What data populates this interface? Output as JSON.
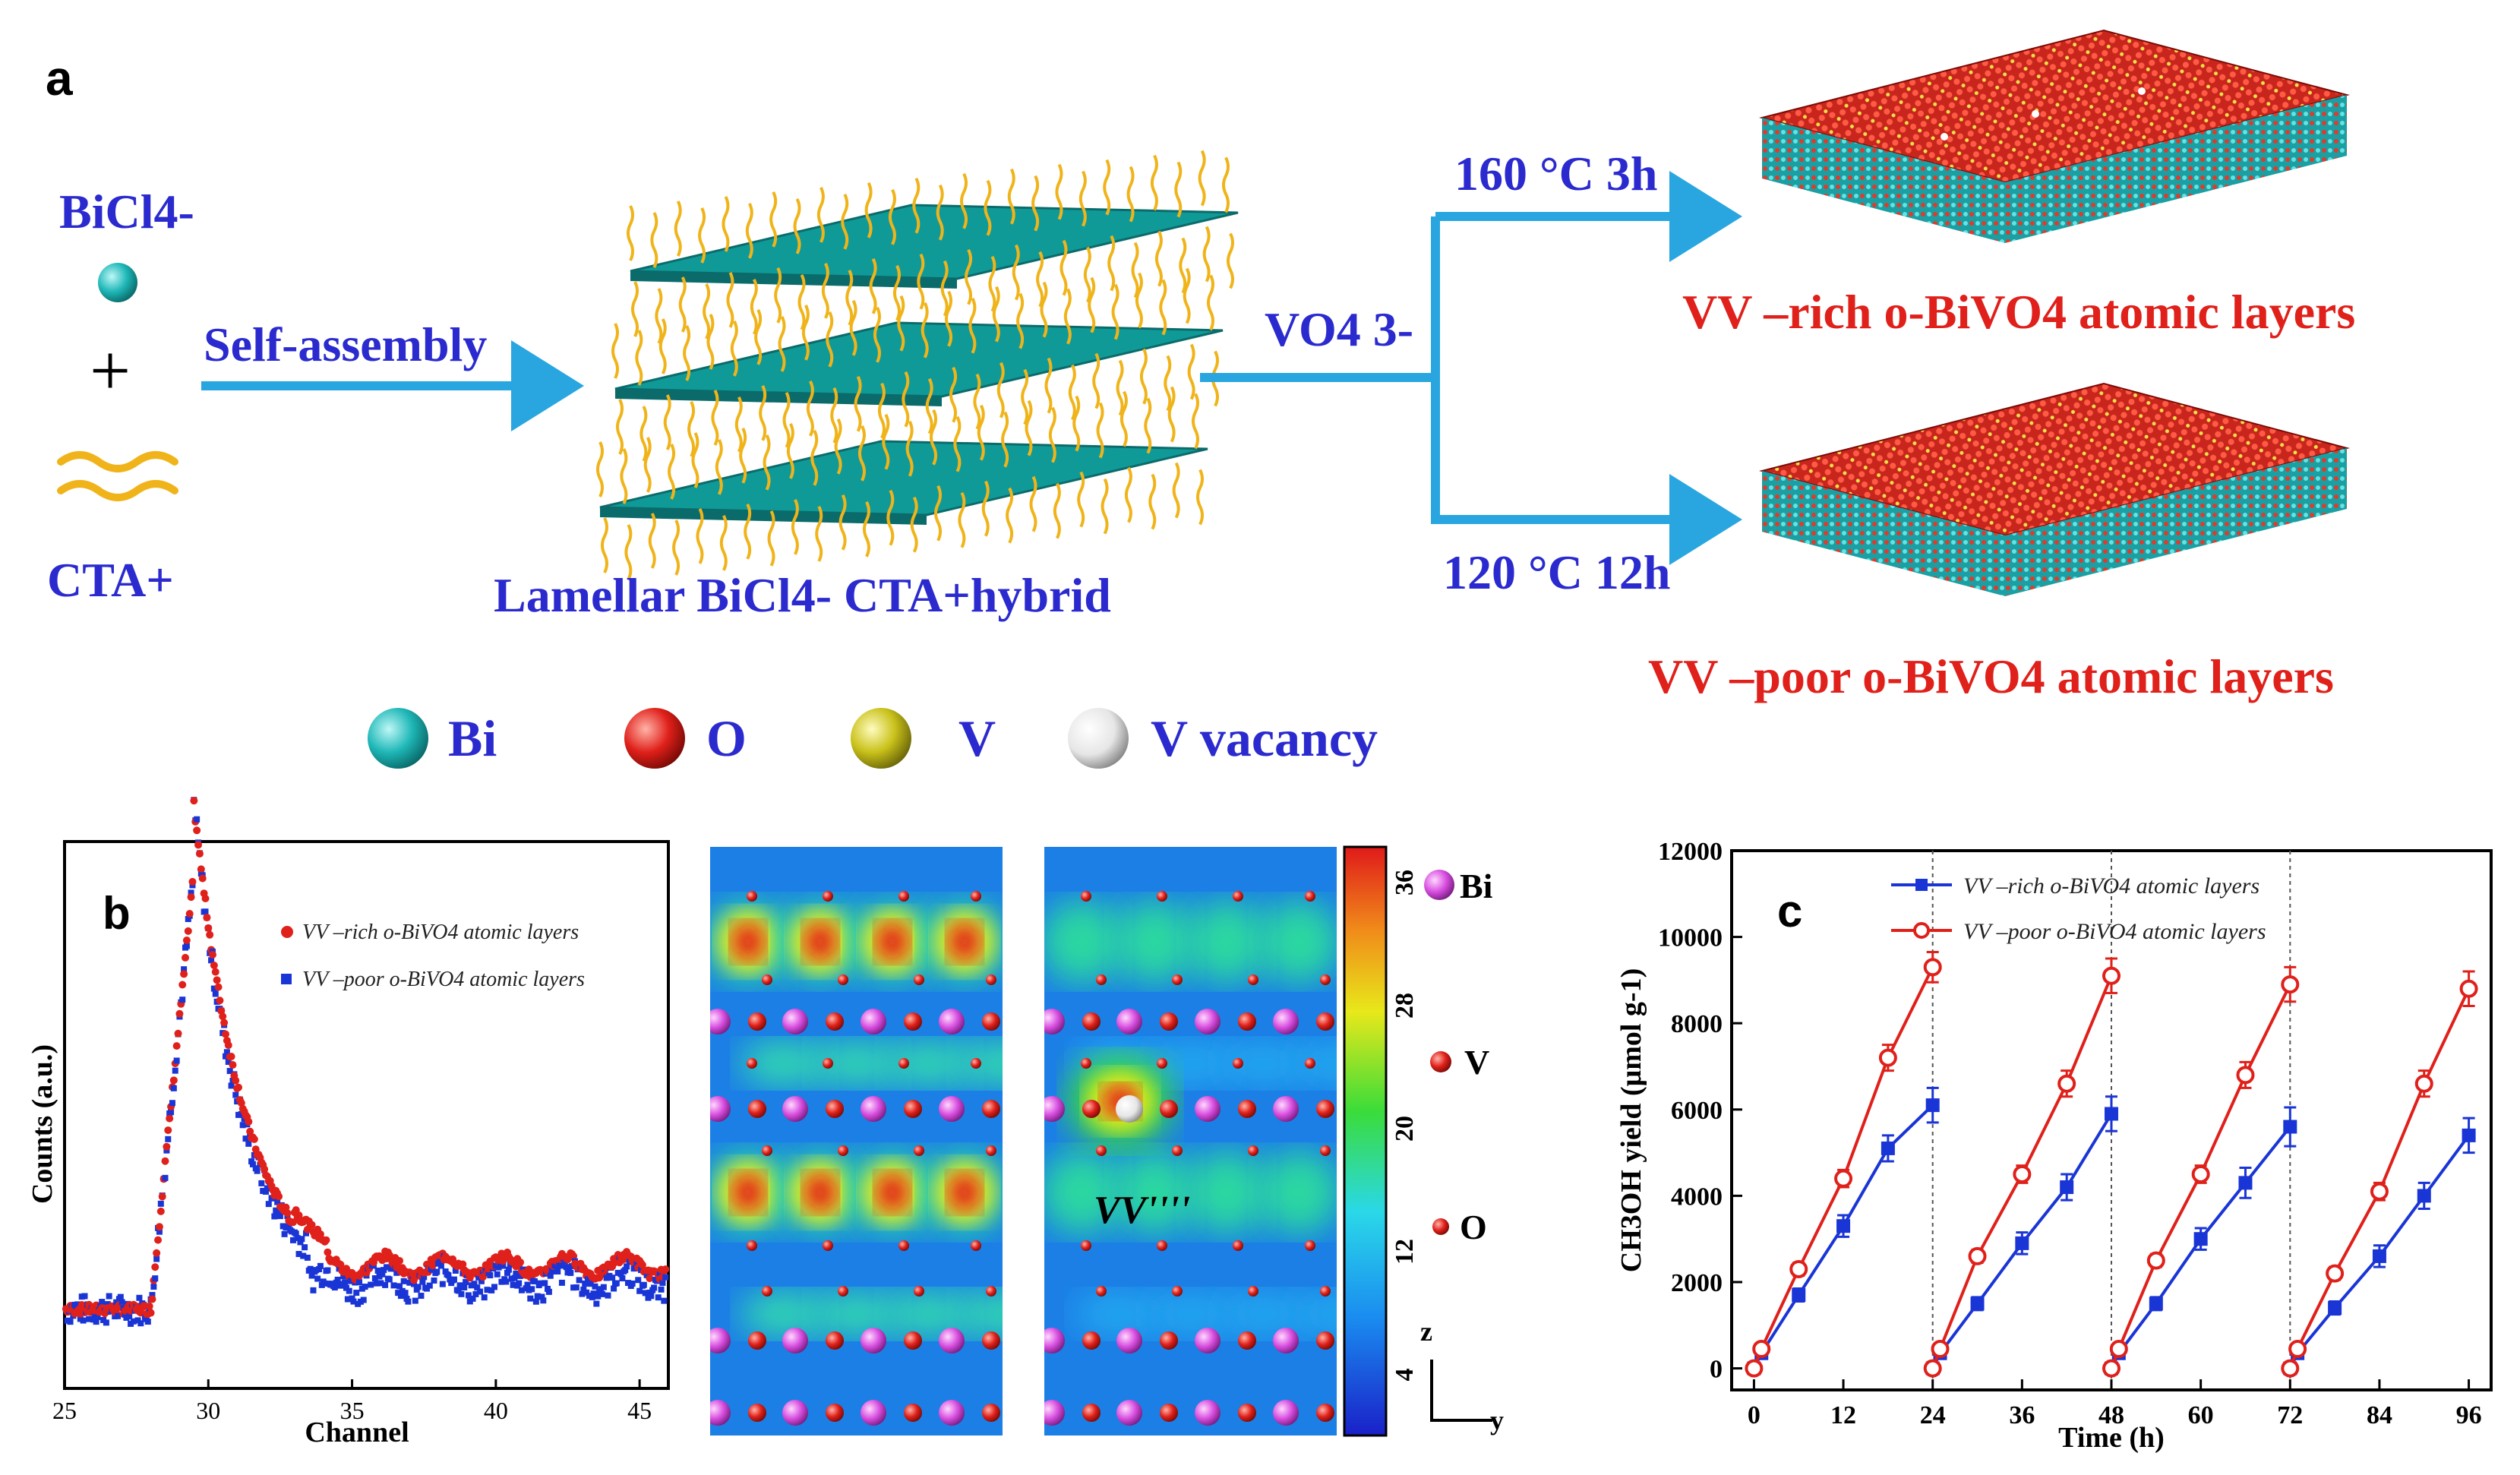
{
  "panel_a": {
    "letter": "a",
    "bicl4_label": "BiCl4-",
    "plus": "+",
    "cta_label": "CTA+",
    "arrow1_label": "Self-assembly",
    "lamellar_label": "Lamellar BiCl4- CTA+hybrid",
    "vo4_label": "VO4 3-",
    "upper_condition": "160 °C 3h",
    "lower_condition": "120 °C 12h",
    "rich_label": "VV –rich o-BiVO4 atomic layers",
    "poor_label": "VV –poor o-BiVO4 atomic layers",
    "legend": [
      {
        "name": "Bi",
        "color": "#1fb7b7"
      },
      {
        "name": "O",
        "color": "#e0201a"
      },
      {
        "name": "V",
        "color": "#c9c11a"
      },
      {
        "name": "V vacancy",
        "color": "#f2f2f2"
      }
    ]
  },
  "panel_b": {
    "letter": "b",
    "legend_rich": "VV –rich o-BiVO4 atomic layers",
    "legend_poor": "VV –poor o-BiVO4 atomic layers",
    "xlabel": "Channel",
    "ylabel": "Counts (a.u.)",
    "xticks": [
      "25",
      "30",
      "35",
      "40",
      "45"
    ],
    "colorbar_ticks": [
      "4",
      "12",
      "20",
      "28",
      "36"
    ],
    "atom_legend": [
      "Bi",
      "V",
      "O"
    ],
    "vacancy_label": "VV''''",
    "axis_z": "z",
    "axis_y": "y"
  },
  "chart_data": {
    "type": "line",
    "title": "c",
    "xlabel": "Time (h)",
    "ylabel": "CH3OH yield (μmol g-1)",
    "xlim": [
      -3,
      99
    ],
    "ylim": [
      -500,
      12000
    ],
    "xticks": [
      0,
      12,
      24,
      36,
      48,
      60,
      72,
      84,
      96
    ],
    "yticks": [
      0,
      2000,
      4000,
      6000,
      8000,
      10000,
      12000
    ],
    "cycle_dividers": [
      24,
      48,
      72
    ],
    "series": [
      {
        "name": "VV –rich o-BiVO4 atomic layers",
        "color": "#1a35d6",
        "marker": "square",
        "cycles": [
          {
            "x": [
              0,
              1,
              6,
              12,
              18,
              24
            ],
            "y": [
              0,
              350,
              1700,
              3300,
              5100,
              6100
            ],
            "err": [
              0,
              80,
              150,
              250,
              300,
              400
            ]
          },
          {
            "x": [
              24,
              25,
              30,
              36,
              42,
              48
            ],
            "y": [
              0,
              350,
              1500,
              2900,
              4200,
              5900
            ],
            "err": [
              0,
              80,
              150,
              250,
              300,
              400
            ]
          },
          {
            "x": [
              48,
              49,
              54,
              60,
              66,
              72
            ],
            "y": [
              0,
              350,
              1500,
              3000,
              4300,
              5600
            ],
            "err": [
              0,
              80,
              150,
              250,
              350,
              450
            ]
          },
          {
            "x": [
              72,
              73,
              78,
              84,
              90,
              96
            ],
            "y": [
              0,
              350,
              1400,
              2600,
              4000,
              5400
            ],
            "err": [
              0,
              80,
              150,
              250,
              300,
              400
            ]
          }
        ]
      },
      {
        "name": "VV –poor o-BiVO4 atomic layers",
        "color": "#e0201a",
        "marker": "circle",
        "cycles": [
          {
            "x": [
              0,
              1,
              6,
              12,
              18,
              24
            ],
            "y": [
              0,
              450,
              2300,
              4400,
              7200,
              9300
            ],
            "err": [
              0,
              80,
              150,
              200,
              300,
              350
            ]
          },
          {
            "x": [
              24,
              25,
              30,
              36,
              42,
              48
            ],
            "y": [
              0,
              450,
              2600,
              4500,
              6600,
              9100
            ],
            "err": [
              0,
              80,
              150,
              200,
              300,
              400
            ]
          },
          {
            "x": [
              48,
              49,
              54,
              60,
              66,
              72
            ],
            "y": [
              0,
              450,
              2500,
              4500,
              6800,
              8900
            ],
            "err": [
              0,
              80,
              150,
              200,
              300,
              400
            ]
          },
          {
            "x": [
              72,
              73,
              78,
              84,
              90,
              96
            ],
            "y": [
              0,
              450,
              2200,
              4100,
              6600,
              8800
            ],
            "err": [
              0,
              80,
              150,
              200,
              300,
              400
            ]
          }
        ]
      }
    ],
    "legend_position": "top-left"
  }
}
